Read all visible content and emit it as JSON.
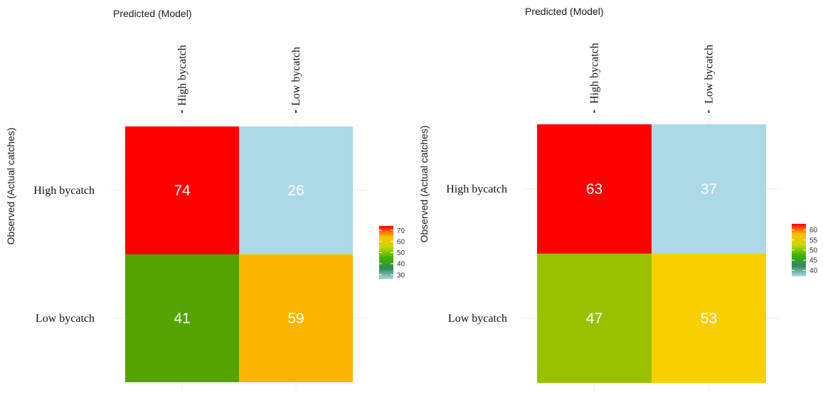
{
  "chart_data": [
    {
      "type": "heatmap",
      "xlabel": "Predicted (Model)",
      "ylabel": "Observed (Actual catches)",
      "columns": [
        "High bycatch",
        "Low bycatch"
      ],
      "rows": [
        "High bycatch",
        "Low bycatch"
      ],
      "values": [
        [
          74,
          26
        ],
        [
          41,
          59
        ]
      ],
      "cell_colors": [
        [
          "#ff0000",
          "#add8e6"
        ],
        [
          "#55a300",
          "#fbb500"
        ]
      ],
      "legend": {
        "ticks": [
          "70",
          "60",
          "50",
          "40",
          "30"
        ],
        "tick_values": [
          70,
          60,
          50,
          40,
          30
        ],
        "min": 26,
        "max": 74,
        "gradient": [
          "#add8e6",
          "#2e8b57",
          "#3cb300",
          "#c8d800",
          "#ffc000",
          "#ff0000"
        ]
      }
    },
    {
      "type": "heatmap",
      "xlabel": "Predicted (Model)",
      "ylabel": "Observed (Actual catches)",
      "columns": [
        "High bycatch",
        "Low bycatch"
      ],
      "rows": [
        "High bycatch",
        "Low bycatch"
      ],
      "values": [
        [
          63,
          37
        ],
        [
          47,
          53
        ]
      ],
      "cell_colors": [
        [
          "#ff0000",
          "#add8e6"
        ],
        [
          "#99c100",
          "#f8d000"
        ]
      ],
      "legend": {
        "ticks": [
          "60",
          "55",
          "50",
          "45",
          "40"
        ],
        "tick_values": [
          60,
          55,
          50,
          45,
          40
        ],
        "min": 37,
        "max": 63,
        "gradient": [
          "#add8e6",
          "#2e8b57",
          "#3cb300",
          "#c8d800",
          "#ffc000",
          "#ff0000"
        ]
      }
    }
  ]
}
